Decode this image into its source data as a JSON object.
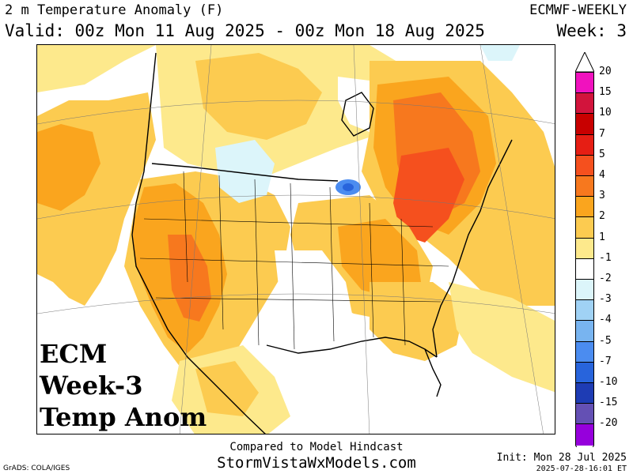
{
  "header": {
    "title_left": "2 m Temperature Anomaly (F)",
    "valid": "Valid: 00z Mon 11 Aug 2025 - 00z Mon 18 Aug 2025",
    "title_right": "ECMWF-WEEKLY",
    "week": "Week: 3"
  },
  "overlay": {
    "line1": "ECM",
    "line2": "Week-3",
    "line3": "Temp Anom"
  },
  "colorbar": {
    "levels": [
      {
        "label": "20",
        "color": "#f012be"
      },
      {
        "label": "15",
        "color": "#d2143c"
      },
      {
        "label": "10",
        "color": "#c80000"
      },
      {
        "label": "7",
        "color": "#e61e14"
      },
      {
        "label": "5",
        "color": "#f5501e"
      },
      {
        "label": "4",
        "color": "#f7781e"
      },
      {
        "label": "3",
        "color": "#faa51e"
      },
      {
        "label": "2",
        "color": "#fccb50"
      },
      {
        "label": "1",
        "color": "#fde98c"
      },
      {
        "label": "-1",
        "color": "#ffffff"
      },
      {
        "label": "-2",
        "color": "#dcf5fa"
      },
      {
        "label": "-3",
        "color": "#a0d2f5"
      },
      {
        "label": "-4",
        "color": "#78b4f0"
      },
      {
        "label": "-5",
        "color": "#4b8cf0"
      },
      {
        "label": "-7",
        "color": "#2864dc"
      },
      {
        "label": "-10",
        "color": "#1e3cb4"
      },
      {
        "label": "-15",
        "color": "#6450b4"
      },
      {
        "label": "-20",
        "color": "#9600dc"
      }
    ],
    "bottom_extension_color": "#ffffff",
    "top_extension_color": "#ffffff"
  },
  "footer": {
    "compared": "Compared to Model Hindcast",
    "site": "StormVistaWxModels.com",
    "credit": "GrADS: COLA/IGES",
    "init": "Init: Mon 28 Jul 2025",
    "timestamp": "2025-07-28-16:01 ET"
  },
  "map_colors": {
    "ocean_warm": "#fde98c",
    "anom_2": "#fccb50",
    "anom_3": "#faa51e",
    "anom_4": "#f7781e",
    "anom_5": "#f5501e",
    "neutral": "#ffffff",
    "cool_2": "#dcf5fa",
    "cool_3": "#a0d2f5",
    "cool_5": "#4b8cf0",
    "cool_7": "#2864dc"
  }
}
